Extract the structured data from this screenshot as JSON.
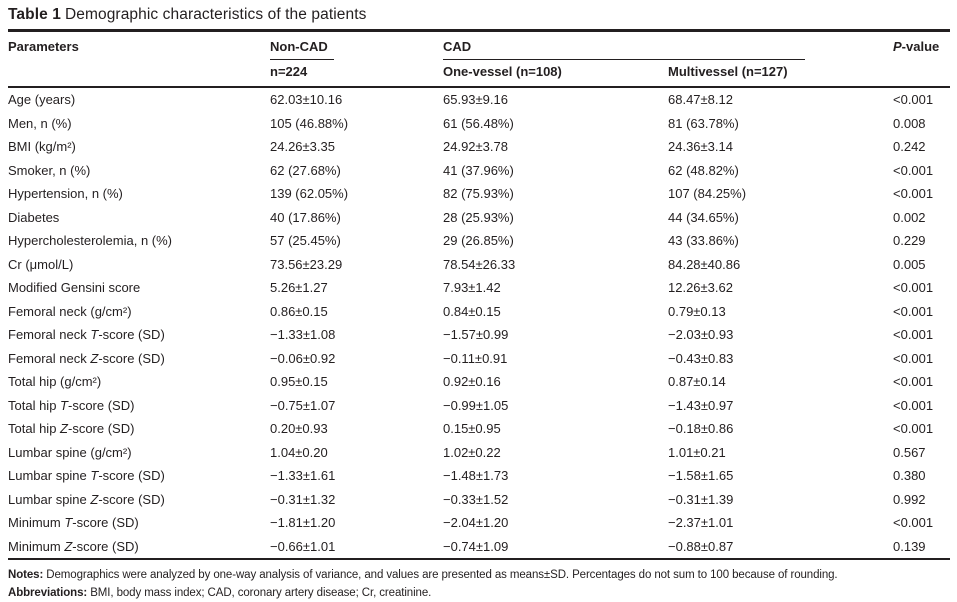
{
  "title": {
    "label": "Table 1",
    "text": "Demographic characteristics of the patients"
  },
  "table": {
    "header": {
      "parameters": "Parameters",
      "noncad": "Non-CAD",
      "noncad_sub": "n=224",
      "cad_group": "CAD",
      "onevessel": "One-vessel (n=108)",
      "multivessel": "Multivessel (n=127)",
      "pvalue": "P-value"
    },
    "rows": [
      {
        "param": "Age (years)",
        "noncad": "62.03±10.16",
        "onevessel": "65.93±9.16",
        "multivessel": "68.47±8.12",
        "pvalue": "<0.001"
      },
      {
        "param": "Men, n (%)",
        "noncad": "105 (46.88%)",
        "onevessel": "61 (56.48%)",
        "multivessel": "81 (63.78%)",
        "pvalue": "0.008"
      },
      {
        "param": "BMI (kg/m²)",
        "noncad": "24.26±3.35",
        "onevessel": "24.92±3.78",
        "multivessel": "24.36±3.14",
        "pvalue": "0.242"
      },
      {
        "param": "Smoker, n (%)",
        "noncad": "62 (27.68%)",
        "onevessel": "41 (37.96%)",
        "multivessel": "62 (48.82%)",
        "pvalue": "<0.001"
      },
      {
        "param": "Hypertension, n (%)",
        "noncad": "139 (62.05%)",
        "onevessel": "82 (75.93%)",
        "multivessel": "107 (84.25%)",
        "pvalue": "<0.001"
      },
      {
        "param": "Diabetes",
        "noncad": "40 (17.86%)",
        "onevessel": "28 (25.93%)",
        "multivessel": "44 (34.65%)",
        "pvalue": "0.002"
      },
      {
        "param": "Hypercholesterolemia, n (%)",
        "noncad": "57 (25.45%)",
        "onevessel": "29 (26.85%)",
        "multivessel": "43 (33.86%)",
        "pvalue": "0.229"
      },
      {
        "param": "Cr (μmol/L)",
        "noncad": "73.56±23.29",
        "onevessel": "78.54±26.33",
        "multivessel": "84.28±40.86",
        "pvalue": "0.005"
      },
      {
        "param": "Modified Gensini score",
        "noncad": "5.26±1.27",
        "onevessel": "7.93±1.42",
        "multivessel": "12.26±3.62",
        "pvalue": "<0.001"
      },
      {
        "param": "Femoral neck (g/cm²)",
        "noncad": "0.86±0.15",
        "onevessel": "0.84±0.15",
        "multivessel": "0.79±0.13",
        "pvalue": "<0.001"
      },
      {
        "param": "Femoral neck T-score (SD)",
        "noncad": "−1.33±1.08",
        "onevessel": "−1.57±0.99",
        "multivessel": "−2.03±0.93",
        "pvalue": "<0.001"
      },
      {
        "param": "Femoral neck Z-score (SD)",
        "noncad": "−0.06±0.92",
        "onevessel": "−0.11±0.91",
        "multivessel": "−0.43±0.83",
        "pvalue": "<0.001"
      },
      {
        "param": "Total hip (g/cm²)",
        "noncad": "0.95±0.15",
        "onevessel": "0.92±0.16",
        "multivessel": "0.87±0.14",
        "pvalue": "<0.001"
      },
      {
        "param": "Total hip T-score (SD)",
        "noncad": "−0.75±1.07",
        "onevessel": "−0.99±1.05",
        "multivessel": "−1.43±0.97",
        "pvalue": "<0.001"
      },
      {
        "param": "Total hip Z-score (SD)",
        "noncad": "0.20±0.93",
        "onevessel": "0.15±0.95",
        "multivessel": "−0.18±0.86",
        "pvalue": "<0.001"
      },
      {
        "param": "Lumbar spine (g/cm²)",
        "noncad": "1.04±0.20",
        "onevessel": "1.02±0.22",
        "multivessel": "1.01±0.21",
        "pvalue": "0.567"
      },
      {
        "param": "Lumbar spine T-score (SD)",
        "noncad": "−1.33±1.61",
        "onevessel": "−1.48±1.73",
        "multivessel": "−1.58±1.65",
        "pvalue": "0.380"
      },
      {
        "param": "Lumbar spine Z-score (SD)",
        "noncad": "−0.31±1.32",
        "onevessel": "−0.33±1.52",
        "multivessel": "−0.31±1.39",
        "pvalue": "0.992"
      },
      {
        "param": "Minimum T-score (SD)",
        "noncad": "−1.81±1.20",
        "onevessel": "−2.04±1.20",
        "multivessel": "−2.37±1.01",
        "pvalue": "<0.001"
      },
      {
        "param": "Minimum Z-score (SD)",
        "noncad": "−0.66±1.01",
        "onevessel": "−0.74±1.09",
        "multivessel": "−0.88±0.87",
        "pvalue": "0.139"
      }
    ]
  },
  "footnotes": {
    "notes_label": "Notes:",
    "notes_text": "Demographics were analyzed by one-way analysis of variance, and values are presented as means±SD. Percentages do not sum to 100 because of rounding.",
    "abbrev_label": "Abbreviations:",
    "abbrev_text": "BMI, body mass index; CAD, coronary artery disease; Cr, creatinine."
  },
  "colors": {
    "text": "#231f20",
    "rule": "#231f20",
    "background": "#ffffff"
  }
}
